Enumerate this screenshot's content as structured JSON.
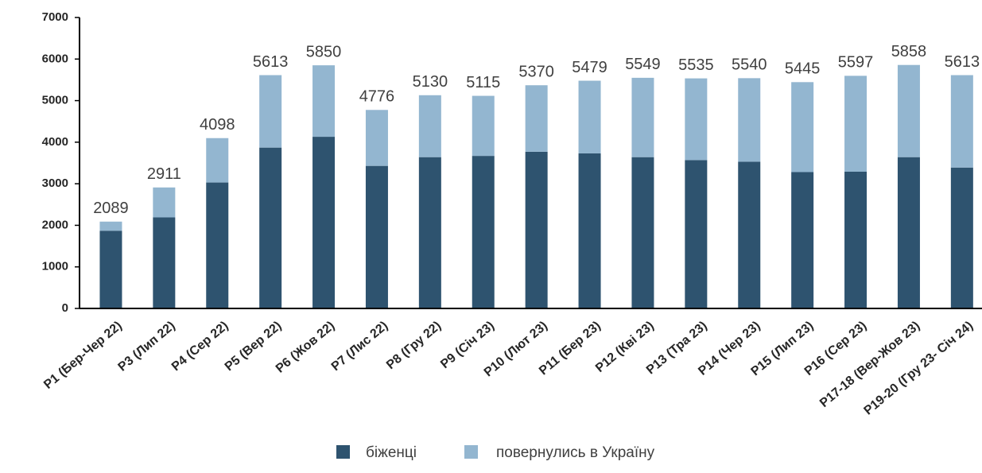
{
  "chart_data": {
    "type": "stacked_bar",
    "categories": [
      "P1 (Бер-Чер 22)",
      "P3 (Лип 22)",
      "P4 (Сер 22)",
      "P5 (Вер 22)",
      "P6 (Жов 22)",
      "P7 (Лис 22)",
      "P8 (Гру 22)",
      "P9 (Січ 23)",
      "P10 (Лют 23)",
      "P11 (Бер 23)",
      "P12 (Кві 23)",
      "P13 (Тра 23)",
      "P14 (Чер 23)",
      "P15 (Лип 23)",
      "P16 (Сер 23)",
      "P17-18 (Вер-Жов 23)",
      "P19-20 (Гру 23- Січ 24)"
    ],
    "series": [
      {
        "name": "біженці",
        "color": "#2e536f",
        "values": [
          1870,
          2190,
          3030,
          3870,
          4130,
          3430,
          3640,
          3670,
          3770,
          3730,
          3640,
          3570,
          3530,
          3280,
          3290,
          3640,
          3390
        ]
      },
      {
        "name": "повернулись в Україну",
        "color": "#93b6d0",
        "values": [
          219,
          721,
          1068,
          1743,
          1720,
          1346,
          1490,
          1445,
          1600,
          1749,
          1909,
          1965,
          2010,
          2165,
          2307,
          2218,
          2223
        ]
      }
    ],
    "totals": [
      2089,
      2911,
      4098,
      5613,
      5850,
      4776,
      5130,
      5115,
      5370,
      5479,
      5549,
      5535,
      5540,
      5445,
      5597,
      5858,
      5613
    ],
    "ylim": [
      0,
      7000
    ],
    "yticks": [
      0,
      1000,
      2000,
      3000,
      4000,
      5000,
      6000,
      7000
    ],
    "grid": false,
    "legend": "bottom"
  }
}
